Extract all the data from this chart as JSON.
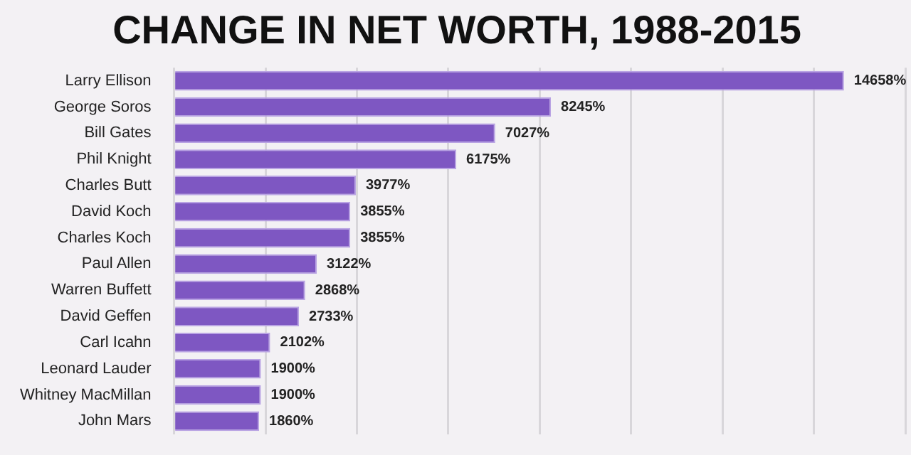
{
  "chart_data": {
    "type": "bar",
    "orientation": "horizontal",
    "title": "CHANGE IN NET WORTH, 1988-2015",
    "categories": [
      "Larry Ellison",
      "George Soros",
      "Bill Gates",
      "Phil Knight",
      "Charles Butt",
      "David Koch",
      "Charles Koch",
      "Paul Allen",
      "Warren Buffett",
      "David Geffen",
      "Carl Icahn",
      "Leonard Lauder",
      "Whitney MacMillan",
      "John Mars"
    ],
    "values": [
      14658,
      8245,
      7027,
      6175,
      3977,
      3855,
      3855,
      3122,
      2868,
      2733,
      2102,
      1900,
      1900,
      1860
    ],
    "value_labels": [
      "14658%",
      "8245%",
      "7027%",
      "6175%",
      "3977%",
      "3855%",
      "3855%",
      "3122%",
      "2868%",
      "2733%",
      "2102%",
      "1900%",
      "1900%",
      "1860%"
    ],
    "color": "#7e57c2",
    "tick_labels": "y",
    "grid": "x",
    "legend": false
  }
}
